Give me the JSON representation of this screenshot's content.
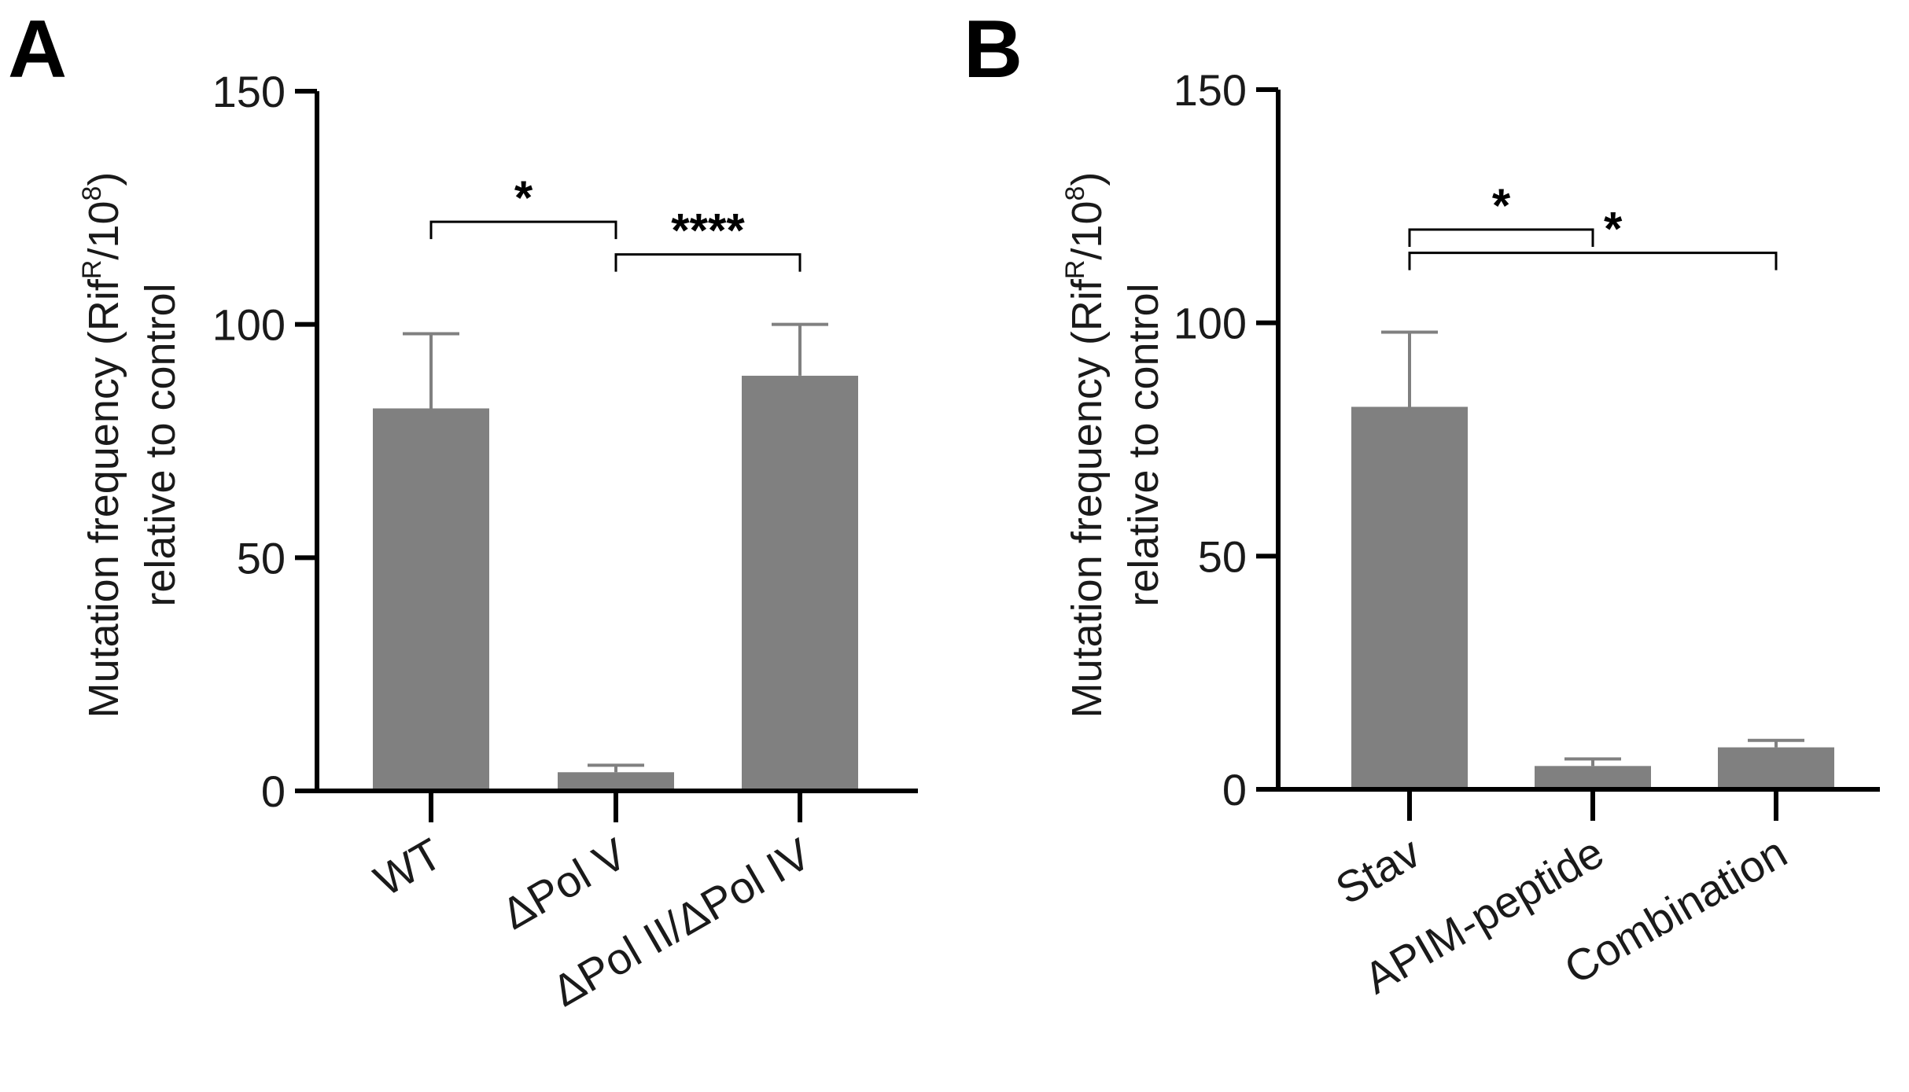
{
  "bar_color": "#808080",
  "axis_color": "#000000",
  "chart_data": [
    {
      "panel": "A",
      "type": "bar",
      "title": "",
      "categories": [
        "WT",
        "ΔPol V",
        "ΔPol II/ΔPol IV"
      ],
      "values": [
        82,
        4,
        89
      ],
      "errors_upper": [
        98,
        5.5,
        100
      ],
      "ylim": [
        0,
        150
      ],
      "yticks": [
        "0",
        "50",
        "100",
        "150"
      ],
      "ylabel": {
        "line1_prefix": "Mutation frequency (Rif",
        "sup1": "R",
        "line1_mid": "/10",
        "sup2": "8",
        "line1_suffix": ")",
        "line2": "relative to control"
      },
      "significance": [
        {
          "from": 0,
          "to": 1,
          "label": "*",
          "level": 122
        },
        {
          "from": 1,
          "to": 2,
          "label": "****",
          "level": 115
        }
      ]
    },
    {
      "panel": "B",
      "type": "bar",
      "title": "",
      "categories": [
        "Stav",
        "APIM-peptide",
        "Combination"
      ],
      "values": [
        82,
        5,
        9
      ],
      "errors_upper": [
        98,
        6.5,
        10.5
      ],
      "ylim": [
        0,
        150
      ],
      "yticks": [
        "0",
        "50",
        "100",
        "150"
      ],
      "ylabel": {
        "line1_prefix": "Mutation frequency (Rif",
        "sup1": "R",
        "line1_mid": "/10",
        "sup2": "8",
        "line1_suffix": ")",
        "line2": "relative to control"
      },
      "significance": [
        {
          "from": 0,
          "to": 1,
          "label": "*",
          "level": 120
        },
        {
          "from": 0,
          "to": 2,
          "label": "*",
          "level": 115
        }
      ]
    }
  ]
}
